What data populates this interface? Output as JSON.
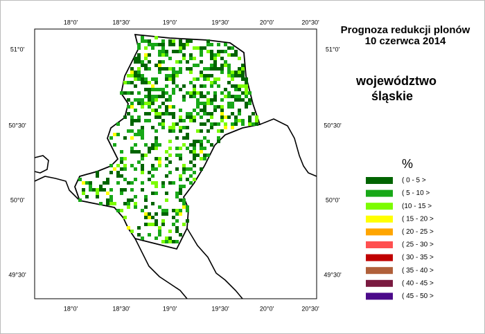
{
  "map": {
    "title": [
      "Prognoza redukcji plonów",
      "10 czerwca 2014"
    ],
    "region": [
      "województwo",
      "śląskie"
    ],
    "lon_ticks": [
      "18°0'",
      "18°30'",
      "19°0'",
      "19°30'",
      "20°0'",
      "20°30'"
    ],
    "lat_ticks": [
      "51°0'",
      "50°30'",
      "50°0'",
      "49°30'"
    ]
  },
  "legend": {
    "title": "%",
    "items": [
      {
        "label": "( 0 - 5 >",
        "color": "#006400"
      },
      {
        "label": "( 5 - 10 >",
        "color": "#18a818"
      },
      {
        "label": "(10 - 15 >",
        "color": "#7cfc00"
      },
      {
        "label": "( 15 - 20 >",
        "color": "#ffff00"
      },
      {
        "label": "( 20 - 25 >",
        "color": "#ffa500"
      },
      {
        "label": "( 25 - 30 >",
        "color": "#ff5050"
      },
      {
        "label": "( 30 - 35 >",
        "color": "#c00000"
      },
      {
        "label": "( 35 - 40 >",
        "color": "#b0603a"
      },
      {
        "label": "( 40 - 45 >",
        "color": "#7a1a40"
      },
      {
        "label": "( 45 - 50 >",
        "color": "#4b0a8a"
      }
    ]
  }
}
